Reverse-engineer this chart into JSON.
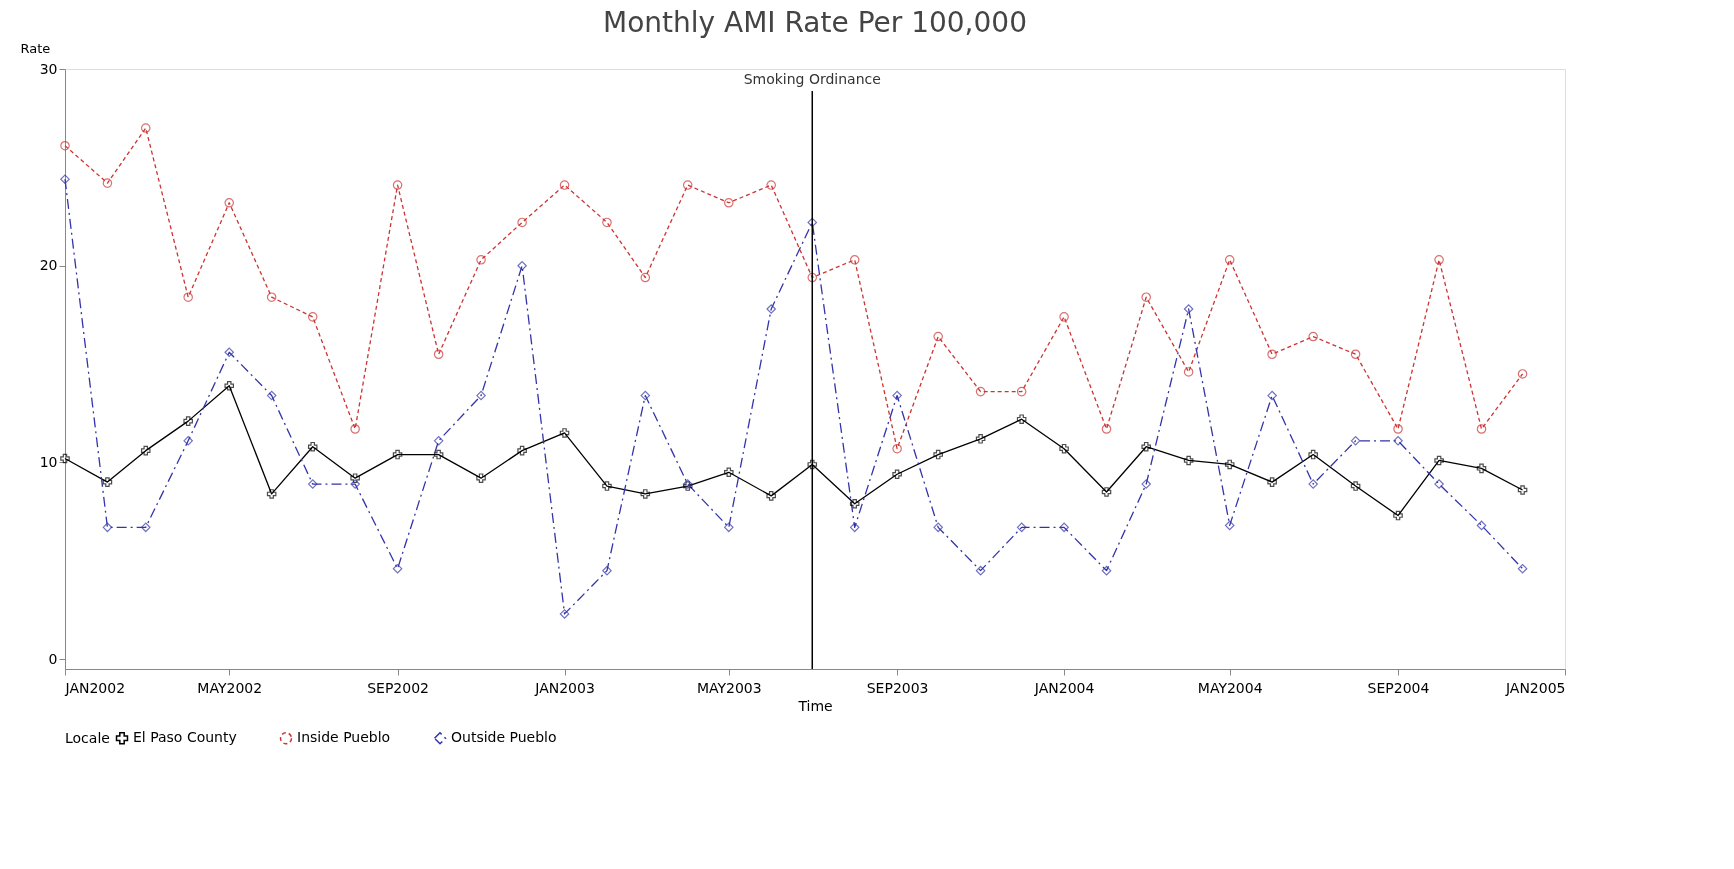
{
  "chart_data": {
    "type": "line",
    "title": "Monthly AMI Rate Per 100,000",
    "xlabel": "Time",
    "ylabel": "Rate",
    "legend_title": "Locale",
    "legend": "bottom",
    "grid": false,
    "x": [
      "2002-01",
      "2002-02",
      "2002-03",
      "2002-04",
      "2002-05",
      "2002-06",
      "2002-07",
      "2002-08",
      "2002-09",
      "2002-10",
      "2002-11",
      "2002-12",
      "2003-01",
      "2003-02",
      "2003-03",
      "2003-04",
      "2003-05",
      "2003-06",
      "2003-07",
      "2003-08",
      "2003-09",
      "2003-10",
      "2003-11",
      "2003-12",
      "2004-01",
      "2004-02",
      "2004-03",
      "2004-04",
      "2004-05",
      "2004-06",
      "2004-07",
      "2004-08",
      "2004-09",
      "2004-10",
      "2004-11",
      "2004-12"
    ],
    "series": [
      {
        "name": "El Paso County",
        "color": "#000000",
        "marker": "cross",
        "line_style": "solid",
        "values": [
          10.2,
          9.0,
          10.6,
          12.1,
          13.9,
          8.4,
          10.8,
          9.2,
          10.4,
          10.4,
          9.2,
          10.6,
          11.5,
          8.8,
          8.4,
          8.8,
          9.5,
          8.3,
          9.9,
          7.9,
          9.4,
          10.4,
          11.2,
          12.2,
          10.7,
          8.5,
          10.8,
          10.1,
          9.9,
          9.0,
          10.4,
          8.8,
          7.3,
          10.1,
          9.7,
          8.6
        ]
      },
      {
        "name": "Inside Pueblo",
        "color": "#cc3333",
        "marker": "circle",
        "line_style": "dotted",
        "values": [
          26.1,
          24.2,
          27.0,
          18.4,
          23.2,
          18.4,
          17.4,
          11.7,
          24.1,
          15.5,
          20.3,
          22.2,
          24.1,
          22.2,
          19.4,
          24.1,
          23.2,
          24.1,
          19.4,
          20.3,
          10.7,
          16.4,
          13.6,
          13.6,
          17.4,
          11.7,
          18.4,
          14.6,
          20.3,
          15.5,
          16.4,
          15.5,
          11.7,
          20.3,
          11.7,
          14.5
        ]
      },
      {
        "name": "Outside Pueblo",
        "color": "#3333aa",
        "marker": "diamond",
        "line_style": "dashed",
        "values": [
          24.4,
          6.7,
          6.7,
          11.1,
          15.6,
          13.4,
          8.9,
          8.9,
          4.6,
          11.1,
          13.4,
          20.0,
          2.3,
          4.5,
          13.4,
          8.9,
          6.7,
          17.8,
          22.2,
          6.7,
          13.4,
          6.7,
          4.5,
          6.7,
          6.7,
          4.5,
          8.9,
          17.8,
          6.8,
          13.4,
          8.9,
          11.1,
          11.1,
          8.9,
          6.8,
          4.6
        ]
      }
    ],
    "ylim": [
      -0.5,
      30
    ],
    "yticks": [
      0,
      10,
      20,
      30
    ],
    "xlim": [
      "2002-01",
      "2005-01"
    ],
    "xticks": [
      {
        "value": "2002-01",
        "label": "JAN2002"
      },
      {
        "value": "2002-05",
        "label": "MAY2002"
      },
      {
        "value": "2002-09",
        "label": "SEP2002"
      },
      {
        "value": "2003-01",
        "label": "JAN2003"
      },
      {
        "value": "2003-05",
        "label": "MAY2003"
      },
      {
        "value": "2003-09",
        "label": "SEP2003"
      },
      {
        "value": "2004-01",
        "label": "JAN2004"
      },
      {
        "value": "2004-05",
        "label": "MAY2004"
      },
      {
        "value": "2004-09",
        "label": "SEP2004"
      },
      {
        "value": "2005-01",
        "label": "JAN2005"
      }
    ],
    "ref_lines": [
      {
        "axis": "x",
        "value": "2003-07",
        "label": "Smoking Ordinance",
        "color": "#000000"
      }
    ]
  }
}
